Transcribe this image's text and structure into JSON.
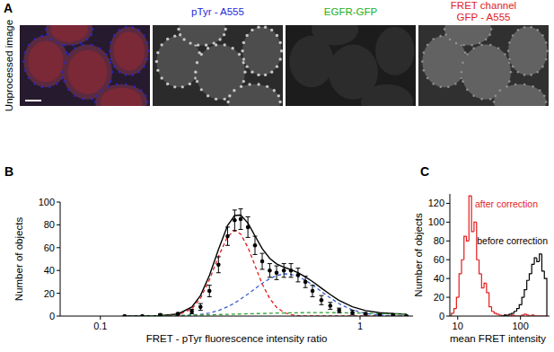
{
  "chart_data": [
    {
      "type": "image",
      "label": "A",
      "row_label": "Unprocessed image",
      "channels": [
        {
          "lines": [
            "pTyr - A555"
          ],
          "color": "#2828d8"
        },
        {
          "lines": [
            "EGFR-GFP"
          ],
          "color": "#22b022"
        },
        {
          "lines": [
            "FRET channel",
            "GFP - A555"
          ],
          "color": "#e0221b"
        }
      ]
    },
    {
      "type": "scatter",
      "label": "B",
      "x_label": "FRET - pTyr fluorescence intensity ratio",
      "y_label": "Number of objects",
      "log": "x",
      "grid": false,
      "xlim": [
        0.07,
        1.6
      ],
      "xticks": [
        0.1,
        1
      ],
      "ylim": [
        0,
        100
      ],
      "yticks": [
        0,
        20,
        40,
        60,
        80,
        100
      ],
      "x": [
        0.124,
        0.145,
        0.17,
        0.199,
        0.225,
        0.243,
        0.263,
        0.285,
        0.309,
        0.329,
        0.347,
        0.37,
        0.394,
        0.42,
        0.449,
        0.477,
        0.509,
        0.542,
        0.577,
        0.616,
        0.656,
        0.71,
        0.768,
        0.831,
        0.935,
        1.05,
        1.19,
        1.34,
        1.51
      ],
      "series": [
        {
          "type": "scatter",
          "marker": "circle",
          "color": "#000000",
          "values": [
            0,
            0,
            1,
            2,
            4,
            8,
            22,
            45,
            70,
            84,
            85,
            78,
            62,
            48,
            40,
            38,
            40,
            40,
            36,
            30,
            22,
            14,
            9,
            5,
            3,
            2,
            1,
            1,
            0
          ],
          "errors": [
            0,
            0,
            1,
            1,
            2,
            3,
            5,
            7,
            8,
            9,
            9,
            9,
            8,
            7,
            6,
            6,
            6,
            6,
            6,
            5,
            5,
            4,
            3,
            2,
            2,
            1,
            1,
            1,
            0
          ]
        },
        {
          "type": "line",
          "line_style": "solid",
          "color": "#000000",
          "values": [
            0.1,
            0.2,
            0.4,
            1.8,
            7.9,
            18.0,
            35.6,
            58.5,
            79.4,
            88.2,
            88.6,
            81.6,
            70.3,
            59.1,
            50.6,
            45.8,
            42.9,
            40.6,
            38.1,
            34.4,
            30.3,
            24.5,
            18.9,
            13.7,
            8.2,
            4.8,
            3.0,
            2.2,
            1.7
          ]
        },
        {
          "type": "line",
          "line_style": "dashed",
          "color": "#e41a1c",
          "values": [
            0,
            0,
            0,
            1.0,
            6.4,
            15.6,
            31.8,
            52.3,
            69.8,
            75,
            71.9,
            60.3,
            44.2,
            28.1,
            15.4,
            7.7,
            3.2,
            1.2,
            0.4,
            0,
            0,
            0,
            0,
            0,
            0,
            0,
            0,
            0,
            0
          ]
        },
        {
          "type": "line",
          "line_style": "dashed",
          "color": "#3a5fcd",
          "values": [
            0,
            0,
            0,
            0.2,
            0.7,
            1.5,
            2.7,
            4.9,
            8.1,
            11.5,
            14.9,
            19.3,
            24.0,
            28.7,
            32.8,
            35.5,
            37,
            36.6,
            34.8,
            31.4,
            27.3,
            21.5,
            15.9,
            10.8,
            5.4,
            2.3,
            0.8,
            0.3,
            0.1
          ]
        },
        {
          "type": "line",
          "line_style": "dashed",
          "color": "#2e9e2e",
          "values": [
            0.1,
            0.2,
            0.4,
            0.6,
            0.8,
            0.9,
            1.1,
            1.3,
            1.5,
            1.7,
            1.8,
            2.0,
            2.1,
            2.3,
            2.4,
            2.6,
            2.7,
            2.8,
            2.9,
            3.0,
            3.0,
            3.0,
            3.0,
            2.9,
            2.8,
            2.5,
            2.2,
            1.9,
            1.6
          ]
        }
      ]
    },
    {
      "type": "histogram",
      "label": "C",
      "x_label": "mean FRET intensity",
      "y_label": "Number of objects",
      "log": "x",
      "grid": false,
      "xlim": [
        7.5,
        290
      ],
      "xticks": [
        10,
        100
      ],
      "ylim": [
        0,
        130
      ],
      "yticks": [
        0,
        20,
        40,
        60,
        80,
        100,
        120
      ],
      "bins": [
        7.94,
        8.71,
        9.55,
        10.5,
        11.5,
        12.6,
        13.8,
        15.1,
        16.6,
        18.2,
        20.0,
        21.9,
        24.0,
        26.3,
        28.8,
        31.6,
        34.7,
        38.0,
        41.7,
        45.7,
        50.1,
        55.0,
        60.3,
        66.1,
        72.4,
        79.4,
        87.1,
        95.5,
        105,
        115,
        126,
        138,
        151,
        166,
        182,
        200,
        219,
        240,
        263
      ],
      "series": [
        {
          "color": "#e41a1c",
          "values": [
            3,
            8,
            20,
            45,
            60,
            85,
            80,
            128,
            90,
            100,
            60,
            45,
            30,
            35,
            25,
            10,
            5,
            3,
            2,
            1,
            0,
            1,
            0,
            0,
            1,
            0,
            0,
            0,
            1,
            2,
            1,
            0,
            1,
            0,
            0,
            0,
            0,
            0
          ]
        },
        {
          "color": "#000000",
          "values": [
            null,
            null,
            null,
            null,
            null,
            null,
            null,
            null,
            null,
            null,
            null,
            null,
            null,
            null,
            null,
            null,
            null,
            null,
            null,
            null,
            0,
            1,
            1,
            2,
            3,
            5,
            8,
            12,
            20,
            28,
            38,
            45,
            55,
            62,
            58,
            66,
            48,
            40
          ]
        }
      ],
      "annotations": [
        {
          "text": "after correction",
          "color": "#e41a1c"
        },
        {
          "text": "before correction",
          "color": "#000000"
        }
      ]
    }
  ]
}
